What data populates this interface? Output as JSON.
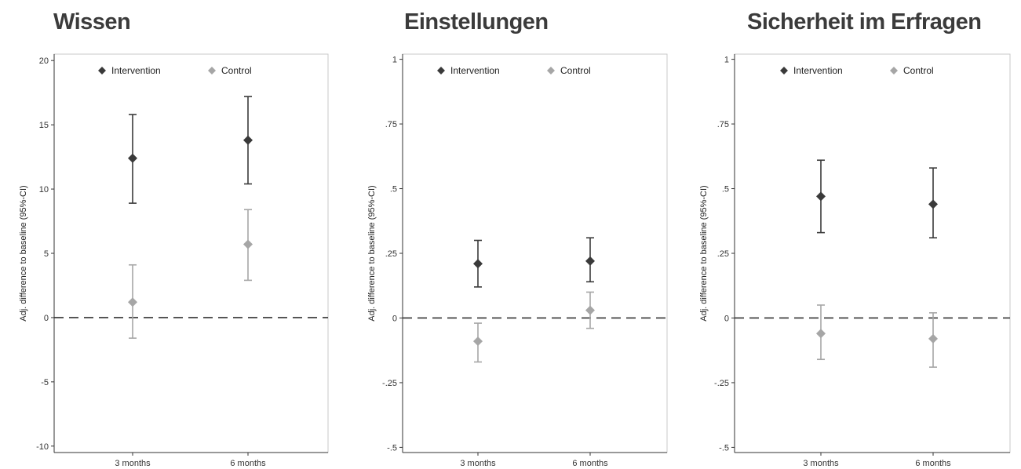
{
  "chart_data": [
    {
      "type": "scatter",
      "title": "Wissen",
      "ylabel": "Adj. difference to baseline (95%-CI)",
      "categories": [
        "3 months",
        "6 months"
      ],
      "ylim": [
        -10.5,
        20.5
      ],
      "yticks": [
        20,
        15,
        10,
        5,
        0,
        -5,
        -10
      ],
      "ytick_labels": [
        "20",
        "15",
        "10",
        "5",
        "0",
        "-5",
        "-10"
      ],
      "reference_line": 0,
      "legend_position": "top-right",
      "series": [
        {
          "name": "Intervention",
          "color": "#3a3a3a",
          "values": [
            12.4,
            13.8
          ],
          "lower": [
            8.9,
            10.4
          ],
          "upper": [
            15.8,
            17.2
          ]
        },
        {
          "name": "Control",
          "color": "#a6a6a6",
          "values": [
            1.2,
            5.7
          ],
          "lower": [
            -1.6,
            2.9
          ],
          "upper": [
            4.1,
            8.4
          ]
        }
      ]
    },
    {
      "type": "scatter",
      "title": "Einstellungen",
      "ylabel": "Adj. difference to baseline (95%-CI)",
      "categories": [
        "3 months",
        "6 months"
      ],
      "ylim": [
        -0.52,
        1.02
      ],
      "yticks": [
        1,
        0.75,
        0.5,
        0.25,
        0,
        -0.25,
        -0.5
      ],
      "ytick_labels": [
        "1",
        ".75",
        ".5",
        ".25",
        "0",
        "-.25",
        "-.5"
      ],
      "reference_line": 0,
      "legend_position": "top-right",
      "series": [
        {
          "name": "Intervention",
          "color": "#3a3a3a",
          "values": [
            0.21,
            0.22
          ],
          "lower": [
            0.12,
            0.14
          ],
          "upper": [
            0.3,
            0.31
          ]
        },
        {
          "name": "Control",
          "color": "#a6a6a6",
          "values": [
            -0.09,
            0.03
          ],
          "lower": [
            -0.17,
            -0.04
          ],
          "upper": [
            -0.02,
            0.1
          ]
        }
      ]
    },
    {
      "type": "scatter",
      "title": "Sicherheit im Erfragen",
      "ylabel": "Adj. difference to baseline (95%-CI)",
      "categories": [
        "3 months",
        "6 months"
      ],
      "ylim": [
        -0.52,
        1.02
      ],
      "yticks": [
        1,
        0.75,
        0.5,
        0.25,
        0,
        -0.25,
        -0.5
      ],
      "ytick_labels": [
        "1",
        ".75",
        ".5",
        ".25",
        "0",
        "-.25",
        "-.5"
      ],
      "reference_line": 0,
      "legend_position": "top-right",
      "series": [
        {
          "name": "Intervention",
          "color": "#3a3a3a",
          "values": [
            0.47,
            0.44
          ],
          "lower": [
            0.33,
            0.31
          ],
          "upper": [
            0.61,
            0.58
          ]
        },
        {
          "name": "Control",
          "color": "#a6a6a6",
          "values": [
            -0.06,
            -0.08
          ],
          "lower": [
            -0.16,
            -0.19
          ],
          "upper": [
            0.05,
            0.02
          ]
        }
      ]
    }
  ]
}
